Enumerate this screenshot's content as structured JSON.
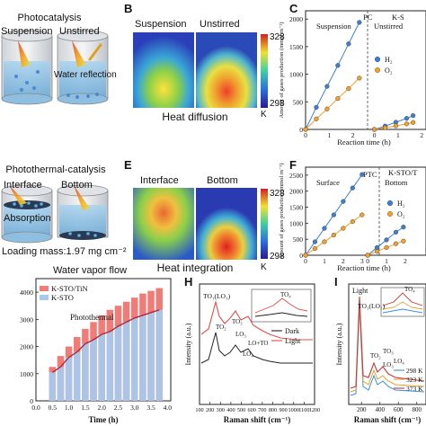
{
  "panels": {
    "A": {
      "title": "Photocatalysis",
      "left_label": "Suspension",
      "right_label": "Unstirred",
      "annotation": "Water reflection"
    },
    "B": {
      "letter": "B",
      "left_label": "Suspension",
      "right_label": "Unstirred",
      "caption": "Heat diffusion",
      "cb_max": "328",
      "cb_min": "298",
      "cb_unit": "K"
    },
    "C": {
      "letter": "C",
      "left_label": "Suspension",
      "mid_label": "PC",
      "right_label": "Unstirred",
      "corner_label": "K-S"
    },
    "D": {
      "title": "Photothermal-catalysis",
      "left_label": "Interface",
      "right_label": "Bottom",
      "annotation": "Absorption",
      "loading": "Loading mass:1.97 mg cm⁻²"
    },
    "E": {
      "letter": "E",
      "left_label": "Interface",
      "right_label": "Bottom",
      "caption": "Heat integration",
      "cb_max": "328",
      "cb_min": "298",
      "cb_unit": "K"
    },
    "F": {
      "letter": "F",
      "left_label": "Surface",
      "mid_label": "PTC",
      "right_label": "Bottom",
      "corner_label": "K-STO/T"
    },
    "H": {
      "letter": "H"
    },
    "I": {
      "letter": "I"
    }
  },
  "chart_data": [
    {
      "id": "C",
      "type": "scatter",
      "xlabel": "Reaction time (h)",
      "ylabel": "Amount of gases production (mmol m⁻²)",
      "xticks": [
        "0",
        "1",
        "2",
        "0",
        "1",
        "2"
      ],
      "yticks": [
        "0",
        "500",
        "1000",
        "1500",
        "2000"
      ],
      "ylim": [
        0,
        2150
      ],
      "series": [
        {
          "name": "H₂",
          "color": "#3f7fcf",
          "x": [
            0,
            0.5,
            1,
            1.5,
            2,
            2.5
          ],
          "y": [
            0,
            400,
            780,
            1160,
            1550,
            1940
          ]
        },
        {
          "name": "O₂",
          "color": "#f0a030",
          "x": [
            0,
            0.5,
            1,
            1.5,
            2,
            2.5
          ],
          "y": [
            0,
            190,
            370,
            560,
            740,
            930
          ]
        },
        {
          "name": "H₂ (Unstirred)",
          "color": "#3f7fcf",
          "x": [
            3.2,
            3.7,
            4.2,
            4.7,
            5.0
          ],
          "y": [
            0,
            60,
            130,
            200,
            250
          ]
        },
        {
          "name": "O₂ (Unstirred)",
          "color": "#f0a030",
          "x": [
            3.2,
            3.7,
            4.2,
            4.7,
            5.0
          ],
          "y": [
            0,
            30,
            65,
            100,
            125
          ]
        }
      ]
    },
    {
      "id": "F",
      "type": "scatter",
      "xlabel": "Reaction time (h)",
      "ylabel": "Amount of gases production (mmol m⁻²)",
      "xticks": [
        "0",
        "1",
        "2",
        "3",
        "0",
        "1",
        "2"
      ],
      "yticks": [
        "0",
        "500",
        "1000",
        "1500",
        "2000",
        "2500"
      ],
      "ylim": [
        0,
        2750
      ],
      "series": [
        {
          "name": "H₂",
          "color": "#3f7fcf",
          "x": [
            0,
            0.5,
            1,
            1.5,
            2,
            2.5,
            3
          ],
          "y": [
            0,
            420,
            840,
            1260,
            1680,
            2100,
            2520
          ]
        },
        {
          "name": "O₂",
          "color": "#f0a030",
          "x": [
            0,
            0.5,
            1,
            1.5,
            2,
            2.5,
            3
          ],
          "y": [
            0,
            210,
            420,
            630,
            840,
            1050,
            1260
          ]
        },
        {
          "name": "H₂ (Bottom)",
          "color": "#3f7fcf",
          "x": [
            3.3,
            3.8,
            4.3,
            4.8,
            5.2
          ],
          "y": [
            0,
            240,
            480,
            720,
            880
          ]
        },
        {
          "name": "O₂ (Bottom)",
          "color": "#f0a030",
          "x": [
            3.3,
            3.8,
            4.3,
            4.8,
            5.2
          ],
          "y": [
            0,
            120,
            240,
            360,
            440
          ]
        }
      ]
    },
    {
      "id": "G",
      "type": "bar",
      "title": "Water vapor flow",
      "xlabel": "Time (h)",
      "ylabel": "",
      "annotation": "Photothermal",
      "xticks": [
        "0.0",
        "0.5",
        "1.0",
        "1.5",
        "2.0",
        "2.5",
        "3.0",
        "3.5",
        "4.0"
      ],
      "yticks": [
        "0",
        "1000",
        "2000",
        "3000",
        "4000"
      ],
      "ylim": [
        0,
        4500
      ],
      "x": [
        0.5,
        0.75,
        1.0,
        1.25,
        1.5,
        1.75,
        2.0,
        2.25,
        2.5,
        2.75,
        3.0,
        3.25,
        3.5,
        3.75
      ],
      "series": [
        {
          "name": "K-STO/TiN",
          "color": "#f07c78",
          "values": [
            1250,
            1650,
            2000,
            2350,
            2650,
            2900,
            3150,
            3350,
            3500,
            3650,
            3800,
            3950,
            4050,
            4150
          ]
        },
        {
          "name": "K-STO",
          "color": "#a8c8ec",
          "values": [
            1050,
            1250,
            1600,
            1800,
            2100,
            2250,
            2450,
            2550,
            2750,
            2900,
            3050,
            3150,
            3250,
            3350
          ]
        }
      ]
    },
    {
      "id": "H",
      "type": "line",
      "xlabel": "Raman shift (cm⁻¹)",
      "ylabel": "Intensity (a.u.)",
      "xticks": [
        "100",
        "200",
        "300",
        "400",
        "500",
        "600",
        "700",
        "800",
        "900",
        "1000",
        "1100",
        "1200"
      ],
      "xlim": [
        100,
        1200
      ],
      "series": [
        {
          "name": "Dark",
          "color": "#222222"
        },
        {
          "name": "Light",
          "color": "#e0504a"
        }
      ],
      "peak_labels": [
        "TO₁(LO₁)",
        "TO₂",
        "TO₃",
        "LO₃",
        "LO+TO",
        "LO₄",
        "TO₄"
      ]
    },
    {
      "id": "I",
      "type": "line",
      "xlabel": "Raman shift (cm⁻¹)",
      "ylabel": "Intensity (a.u.)",
      "xticks": [
        "200",
        "400",
        "600",
        "800"
      ],
      "series": [
        {
          "name": "298 K",
          "color": "#3a8fd8"
        },
        {
          "name": "323 K",
          "color": "#e0a030"
        },
        {
          "name": "373 K",
          "color": "#c03838"
        }
      ],
      "peak_labels": [
        "TO₁(LO₁)",
        "TO₂",
        "TO₃",
        "LO₃",
        "LO₄",
        "TO₄"
      ],
      "annotation": "Light"
    }
  ]
}
